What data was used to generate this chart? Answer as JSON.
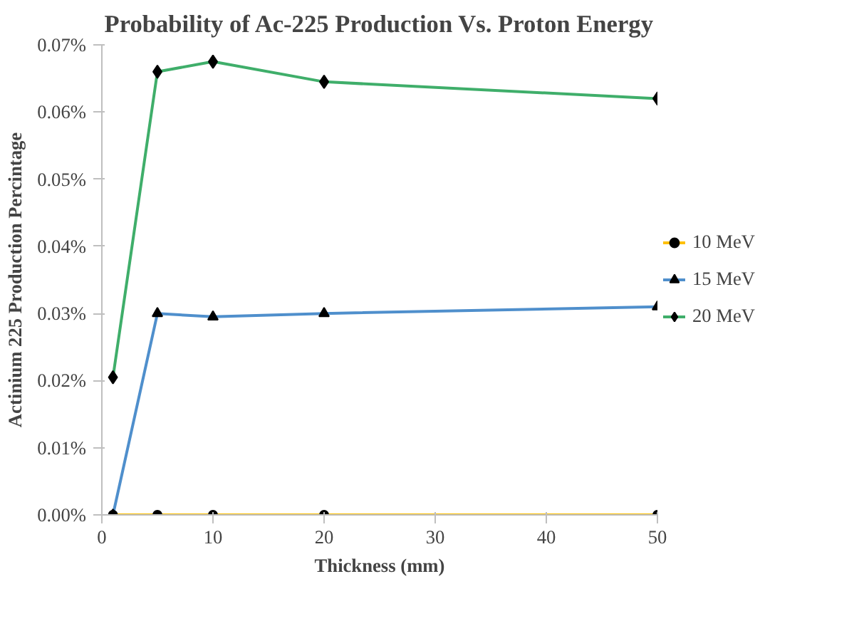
{
  "chart_data": {
    "type": "line",
    "title": "Probability of Ac-225 Production Vs. Proton Energy",
    "xlabel": "Thickness (mm)",
    "ylabel": "Actinium 225 Production Percintage",
    "x": [
      1,
      5,
      10,
      20,
      50
    ],
    "series": [
      {
        "name": "10 MeV",
        "color": "#ffc000",
        "marker": "circle",
        "values": [
          0,
          0,
          0,
          0,
          0
        ]
      },
      {
        "name": "15 MeV",
        "color": "#4f8fcc",
        "marker": "triangle",
        "values": [
          0,
          0.03,
          0.0295,
          0.03,
          0.031
        ]
      },
      {
        "name": "20 MeV",
        "color": "#3fae6a",
        "marker": "diamond",
        "values": [
          0.0205,
          0.066,
          0.0675,
          0.0645,
          0.062
        ]
      }
    ],
    "xlim": [
      0,
      50
    ],
    "xticks": [
      0,
      10,
      20,
      30,
      40,
      50
    ],
    "ylim": [
      0,
      0.07
    ],
    "yticks": [
      {
        "value": 0,
        "label": "0.00%"
      },
      {
        "value": 0.01,
        "label": "0.01%"
      },
      {
        "value": 0.02,
        "label": "0.02%"
      },
      {
        "value": 0.03,
        "label": "0.03%"
      },
      {
        "value": 0.04,
        "label": "0.04%"
      },
      {
        "value": 0.05,
        "label": "0.05%"
      },
      {
        "value": 0.06,
        "label": "0.06%"
      },
      {
        "value": 0.07,
        "label": "0.07%"
      }
    ],
    "grid": false,
    "legend": "right",
    "line_style": "solid"
  }
}
